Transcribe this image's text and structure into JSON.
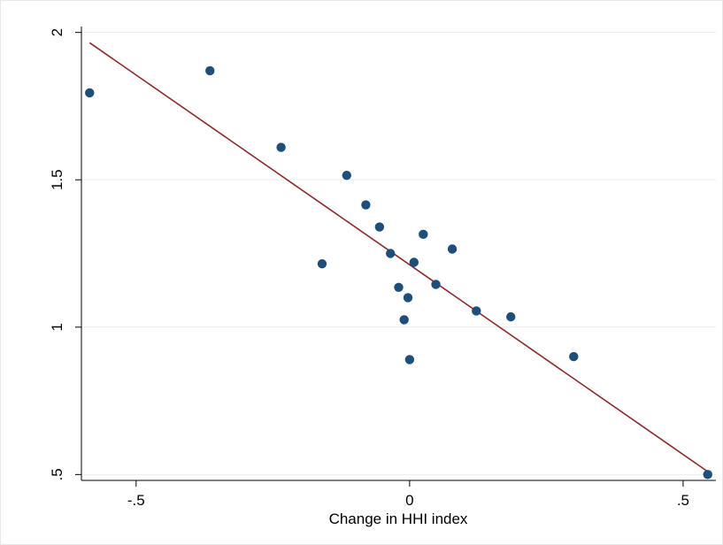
{
  "chart_data": {
    "type": "scatter",
    "title": "",
    "xlabel": "Change in HHI index",
    "ylabel": "",
    "xlim": [
      -0.6,
      0.56
    ],
    "ylim": [
      0.48,
      2.02
    ],
    "x_ticks": [
      -0.5,
      0,
      0.5
    ],
    "x_tick_labels": [
      "-.5",
      "0",
      ".5"
    ],
    "y_ticks": [
      0.5,
      1,
      1.5,
      2
    ],
    "y_tick_labels": [
      ".5",
      "1",
      "1.5",
      "2"
    ],
    "grid": "horizontal",
    "colors": {
      "points": "#1f4e79",
      "fit_line": "#8b2a2a",
      "grid": "#e6eef0",
      "frame": "#e8e8e8"
    },
    "series": [
      {
        "type": "scatter",
        "points": [
          {
            "x": -0.585,
            "y": 1.795
          },
          {
            "x": -0.365,
            "y": 1.87
          },
          {
            "x": -0.235,
            "y": 1.61
          },
          {
            "x": -0.16,
            "y": 1.215
          },
          {
            "x": -0.115,
            "y": 1.515
          },
          {
            "x": -0.08,
            "y": 1.415
          },
          {
            "x": -0.055,
            "y": 1.34
          },
          {
            "x": -0.035,
            "y": 1.25
          },
          {
            "x": -0.02,
            "y": 1.135
          },
          {
            "x": -0.01,
            "y": 1.025
          },
          {
            "x": -0.003,
            "y": 1.1
          },
          {
            "x": 0.0,
            "y": 0.89
          },
          {
            "x": 0.008,
            "y": 1.22
          },
          {
            "x": 0.025,
            "y": 1.315
          },
          {
            "x": 0.048,
            "y": 1.145
          },
          {
            "x": 0.078,
            "y": 1.265
          },
          {
            "x": 0.122,
            "y": 1.055
          },
          {
            "x": 0.185,
            "y": 1.035
          },
          {
            "x": 0.3,
            "y": 0.9
          },
          {
            "x": 0.545,
            "y": 0.5
          }
        ]
      },
      {
        "type": "line",
        "points": [
          {
            "x": -0.585,
            "y": 1.965
          },
          {
            "x": 0.545,
            "y": 0.51
          }
        ]
      }
    ]
  }
}
